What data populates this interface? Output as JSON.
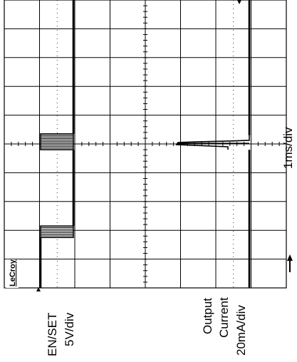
{
  "chart_data": {
    "type": "line",
    "brand": "LeCroy",
    "orientation": "rotated-90-ccw",
    "time_scale": "1ms/div",
    "divisions": {
      "time": 10,
      "vertical": 8
    },
    "channels": [
      {
        "name": "EN/SET",
        "scale": "5V/div",
        "description": "logic level with two pulse bursts",
        "segments_div": [
          {
            "t": [
              0.0,
              1.75
            ],
            "level": 0
          },
          {
            "t": [
              1.75,
              2.15
            ],
            "level": "burst"
          },
          {
            "t": [
              2.15,
              4.8
            ],
            "level": 0.9
          },
          {
            "t": [
              4.8,
              5.35
            ],
            "level": "burst"
          },
          {
            "t": [
              5.35,
              10.0
            ],
            "level": 0.9
          }
        ]
      },
      {
        "name": "Output Current",
        "scale": "20mA/div",
        "description": "current steps down after transient at about 5 div",
        "segments_div": [
          {
            "t": [
              0.0,
              4.8
            ],
            "level": 1.2
          },
          {
            "t": [
              4.8,
              5.3
            ],
            "level": "transient"
          },
          {
            "t": [
              5.3,
              10.0
            ],
            "level": 1.25
          }
        ]
      }
    ]
  },
  "labels": {
    "ch1_name": "EN/SET",
    "ch1_scale": "5V/div",
    "ch2_line1": "Output",
    "ch2_line2": "Current",
    "ch2_scale": "20mA/div",
    "time_scale": "1ms/div",
    "brand": "LeCroy"
  }
}
